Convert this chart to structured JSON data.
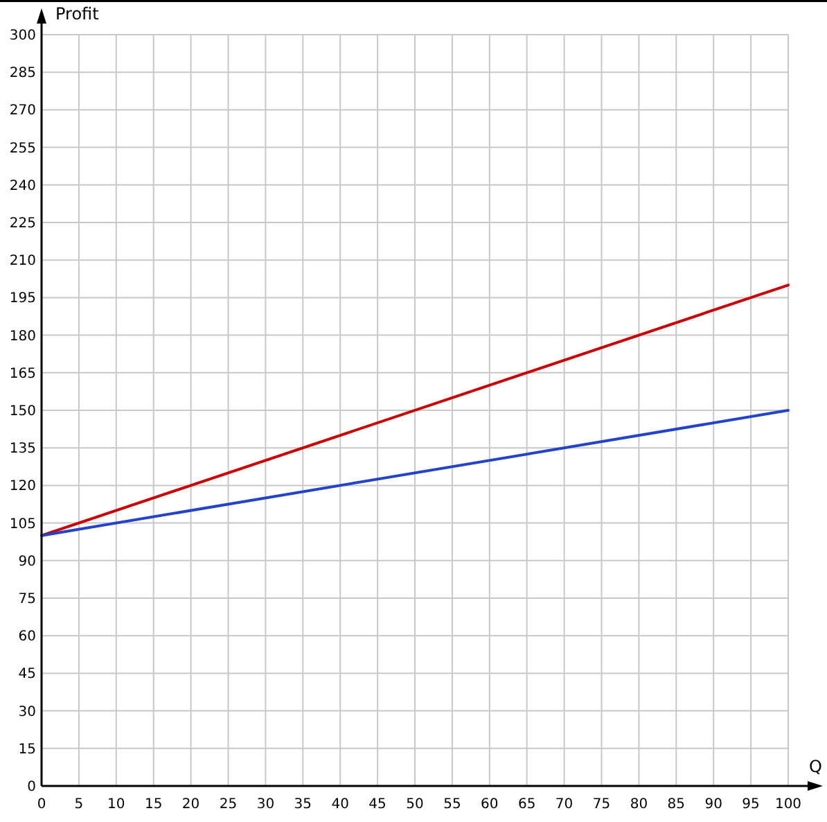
{
  "chart_data": {
    "type": "line",
    "xlabel": "Q",
    "ylabel": "Profit",
    "x": [
      0,
      100
    ],
    "series": [
      {
        "color": "#cc0000",
        "values": [
          100,
          200
        ]
      },
      {
        "color": "#2244cc",
        "values": [
          100,
          150
        ]
      }
    ],
    "xlim": [
      0,
      100
    ],
    "ylim": [
      0,
      300
    ],
    "xticks": [
      0,
      5,
      10,
      15,
      20,
      25,
      30,
      35,
      40,
      45,
      50,
      55,
      60,
      65,
      70,
      75,
      80,
      85,
      90,
      95,
      100
    ],
    "yticks": [
      0,
      15,
      30,
      45,
      60,
      75,
      90,
      105,
      120,
      135,
      150,
      165,
      180,
      195,
      210,
      225,
      240,
      255,
      270,
      285,
      300
    ],
    "grid": true
  }
}
